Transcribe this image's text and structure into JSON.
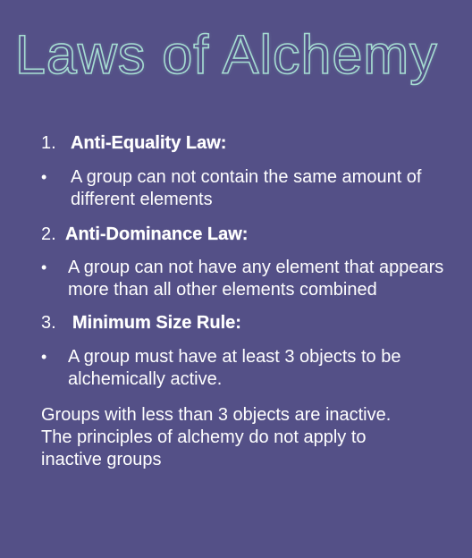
{
  "title": "Laws of Alchemy",
  "laws": [
    {
      "number": "1.",
      "name": "Anti-Equality Law:",
      "bullet": "•",
      "text": "A group can not contain the same amount of different elements"
    },
    {
      "number": "2.",
      "name": "Anti-Dominance Law:",
      "bullet": "•",
      "text": "A group can not have any element that appears more than all other elements combined"
    },
    {
      "number": "3.",
      "name": "Minimum Size Rule:",
      "bullet": "•",
      "text": "A group must have at least 3 objects to be alchemically active."
    }
  ],
  "note": "Groups with less than 3 objects are inactive. The principles of alchemy do not apply to inactive groups",
  "colors": {
    "background": "#545087",
    "title_outline": "#a6ddd2",
    "text": "#ffffff"
  }
}
